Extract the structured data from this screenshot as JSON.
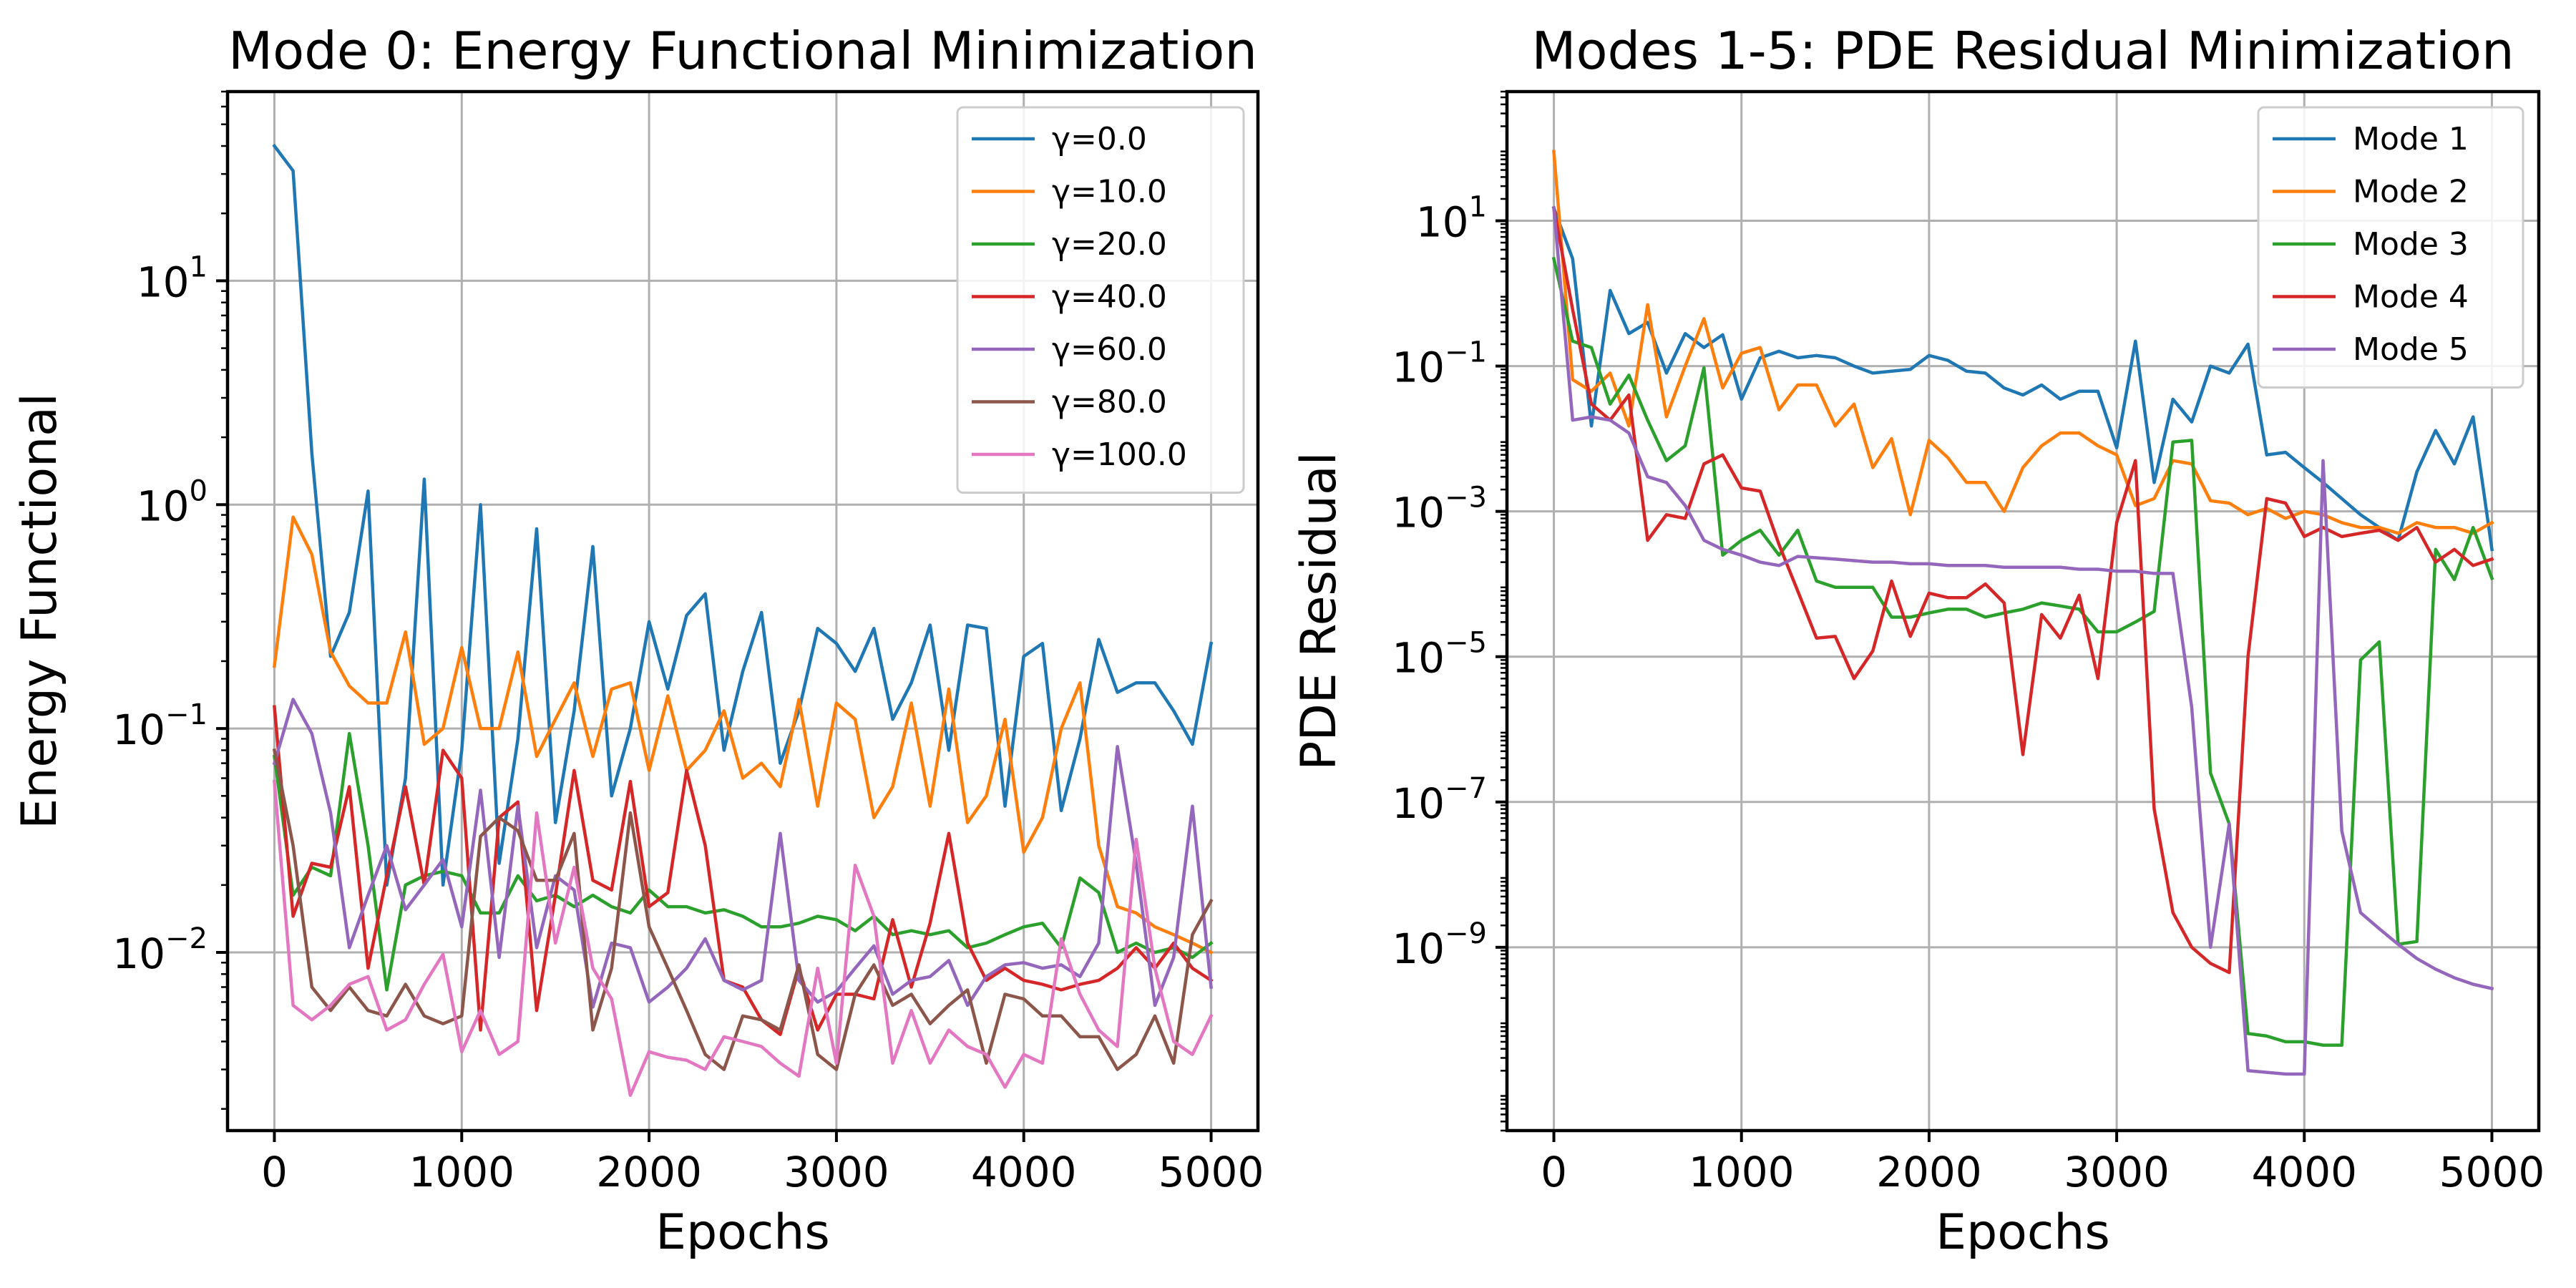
{
  "chart_data": [
    {
      "type": "line",
      "title": "Mode 0: Energy Functional Minimization",
      "xlabel": "Epochs",
      "ylabel": "Energy Functional",
      "yscale": "log",
      "xlim": [
        -250,
        5250
      ],
      "ylim": [
        0.0016,
        70
      ],
      "xticks": [
        0,
        1000,
        2000,
        3000,
        4000,
        5000
      ],
      "xtick_labels": [
        "0",
        "1000",
        "2000",
        "3000",
        "4000",
        "5000"
      ],
      "yticks": [
        {
          "base": "10",
          "exp": "−2",
          "value": 0.01
        },
        {
          "base": "10",
          "exp": "−1",
          "value": 0.1
        },
        {
          "base": "10",
          "exp": "0",
          "value": 1
        },
        {
          "base": "10",
          "exp": "1",
          "value": 10
        }
      ],
      "grid": true,
      "legend_position": "top-right",
      "x": [
        0,
        100,
        200,
        300,
        400,
        500,
        600,
        700,
        800,
        900,
        1000,
        1100,
        1200,
        1300,
        1400,
        1500,
        1600,
        1700,
        1800,
        1900,
        2000,
        2100,
        2200,
        2300,
        2400,
        2500,
        2600,
        2700,
        2800,
        2900,
        3000,
        3100,
        3200,
        3300,
        3400,
        3500,
        3600,
        3700,
        3800,
        3900,
        4000,
        4100,
        4200,
        4300,
        4400,
        4500,
        4600,
        4700,
        4800,
        4900,
        5000
      ],
      "series": [
        {
          "name": "γ=0.0",
          "color": "#1f77b4",
          "values": [
            40,
            31,
            1.7,
            0.21,
            0.33,
            1.15,
            0.02,
            0.06,
            1.3,
            0.02,
            0.08,
            1.0,
            0.025,
            0.09,
            0.78,
            0.038,
            0.12,
            0.65,
            0.05,
            0.1,
            0.3,
            0.15,
            0.32,
            0.4,
            0.08,
            0.18,
            0.33,
            0.07,
            0.12,
            0.28,
            0.24,
            0.18,
            0.28,
            0.11,
            0.16,
            0.29,
            0.08,
            0.29,
            0.28,
            0.045,
            0.21,
            0.24,
            0.043,
            0.09,
            0.25,
            0.145,
            0.16,
            0.16,
            0.12,
            0.085,
            0.24
          ]
        },
        {
          "name": "γ=10.0",
          "color": "#ff7f0e",
          "values": [
            0.19,
            0.88,
            0.6,
            0.22,
            0.155,
            0.13,
            0.13,
            0.27,
            0.085,
            0.1,
            0.23,
            0.1,
            0.1,
            0.22,
            0.075,
            0.11,
            0.16,
            0.075,
            0.15,
            0.16,
            0.065,
            0.14,
            0.065,
            0.08,
            0.12,
            0.06,
            0.07,
            0.055,
            0.135,
            0.045,
            0.13,
            0.11,
            0.04,
            0.055,
            0.13,
            0.045,
            0.15,
            0.038,
            0.05,
            0.11,
            0.028,
            0.04,
            0.1,
            0.16,
            0.03,
            0.016,
            0.015,
            0.013,
            0.012,
            0.011,
            0.01
          ]
        },
        {
          "name": "γ=20.0",
          "color": "#2ca02c",
          "values": [
            0.075,
            0.018,
            0.024,
            0.022,
            0.095,
            0.03,
            0.0068,
            0.02,
            0.022,
            0.023,
            0.022,
            0.015,
            0.015,
            0.022,
            0.017,
            0.018,
            0.016,
            0.018,
            0.016,
            0.015,
            0.019,
            0.016,
            0.016,
            0.015,
            0.0155,
            0.0145,
            0.013,
            0.013,
            0.0135,
            0.0145,
            0.014,
            0.0125,
            0.0145,
            0.012,
            0.0125,
            0.012,
            0.0125,
            0.0105,
            0.011,
            0.012,
            0.013,
            0.0135,
            0.0105,
            0.0215,
            0.0185,
            0.01,
            0.011,
            0.01,
            0.0105,
            0.0095,
            0.011
          ]
        },
        {
          "name": "γ=40.0",
          "color": "#d62728",
          "values": [
            0.125,
            0.0145,
            0.025,
            0.024,
            0.055,
            0.0085,
            0.022,
            0.055,
            0.02,
            0.08,
            0.06,
            0.0045,
            0.04,
            0.047,
            0.0055,
            0.018,
            0.065,
            0.021,
            0.019,
            0.058,
            0.016,
            0.0185,
            0.065,
            0.03,
            0.0075,
            0.007,
            0.005,
            0.0043,
            0.0085,
            0.0045,
            0.0065,
            0.0065,
            0.0062,
            0.014,
            0.007,
            0.0135,
            0.034,
            0.011,
            0.0075,
            0.0085,
            0.0075,
            0.0072,
            0.0068,
            0.0072,
            0.0075,
            0.0085,
            0.0105,
            0.0085,
            0.011,
            0.0085,
            0.0075
          ]
        },
        {
          "name": "γ=60.0",
          "color": "#9467bd",
          "values": [
            0.07,
            0.135,
            0.095,
            0.042,
            0.0105,
            0.018,
            0.03,
            0.0155,
            0.02,
            0.026,
            0.013,
            0.053,
            0.0095,
            0.045,
            0.0105,
            0.022,
            0.019,
            0.0057,
            0.011,
            0.0105,
            0.006,
            0.007,
            0.0085,
            0.0115,
            0.0075,
            0.0068,
            0.0075,
            0.034,
            0.0075,
            0.006,
            0.0067,
            0.0085,
            0.0107,
            0.0065,
            0.0075,
            0.0078,
            0.0092,
            0.0058,
            0.0078,
            0.0088,
            0.009,
            0.0085,
            0.0088,
            0.0078,
            0.011,
            0.083,
            0.025,
            0.0058,
            0.0095,
            0.045,
            0.007
          ]
        },
        {
          "name": "γ=80.0",
          "color": "#8c564b",
          "values": [
            0.08,
            0.03,
            0.007,
            0.0055,
            0.007,
            0.0055,
            0.0052,
            0.0072,
            0.0052,
            0.0048,
            0.0052,
            0.033,
            0.04,
            0.035,
            0.021,
            0.021,
            0.034,
            0.0045,
            0.0085,
            0.042,
            0.013,
            0.0085,
            0.0055,
            0.0035,
            0.003,
            0.0052,
            0.005,
            0.0045,
            0.0088,
            0.0035,
            0.003,
            0.0065,
            0.0088,
            0.0058,
            0.0065,
            0.0048,
            0.0058,
            0.0068,
            0.0032,
            0.0065,
            0.0062,
            0.0052,
            0.0052,
            0.0042,
            0.0042,
            0.003,
            0.0035,
            0.0052,
            0.0032,
            0.012,
            0.017
          ]
        },
        {
          "name": "γ=100.0",
          "color": "#e377c2",
          "values": [
            0.058,
            0.0058,
            0.005,
            0.0058,
            0.0072,
            0.0078,
            0.0045,
            0.005,
            0.0072,
            0.0098,
            0.0036,
            0.0055,
            0.0035,
            0.004,
            0.042,
            0.011,
            0.024,
            0.0085,
            0.0062,
            0.0023,
            0.0036,
            0.0034,
            0.0033,
            0.003,
            0.0042,
            0.004,
            0.0038,
            0.0032,
            0.0028,
            0.0085,
            0.0032,
            0.0245,
            0.0145,
            0.0032,
            0.0055,
            0.0032,
            0.0045,
            0.0038,
            0.0035,
            0.0025,
            0.0035,
            0.0032,
            0.0115,
            0.0065,
            0.0045,
            0.0038,
            0.032,
            0.0085,
            0.004,
            0.0035,
            0.0052
          ]
        }
      ]
    },
    {
      "type": "line",
      "title": "Modes 1-5: PDE Residual Minimization",
      "xlabel": "Epochs",
      "ylabel": "PDE Residual",
      "yscale": "log",
      "xlim": [
        -250,
        5250
      ],
      "ylim": [
        3e-12,
        600
      ],
      "xticks": [
        0,
        1000,
        2000,
        3000,
        4000,
        5000
      ],
      "xtick_labels": [
        "0",
        "1000",
        "2000",
        "3000",
        "4000",
        "5000"
      ],
      "yticks": [
        {
          "base": "10",
          "exp": "−9",
          "value": 1e-09
        },
        {
          "base": "10",
          "exp": "−7",
          "value": 1e-07
        },
        {
          "base": "10",
          "exp": "−5",
          "value": 1e-05
        },
        {
          "base": "10",
          "exp": "−3",
          "value": 0.001
        },
        {
          "base": "10",
          "exp": "−1",
          "value": 0.1
        },
        {
          "base": "10",
          "exp": "1",
          "value": 10
        }
      ],
      "grid": true,
      "legend_position": "top-right",
      "x": [
        0,
        100,
        200,
        300,
        400,
        500,
        600,
        700,
        800,
        900,
        1000,
        1100,
        1200,
        1300,
        1400,
        1500,
        1600,
        1700,
        1800,
        1900,
        2000,
        2100,
        2200,
        2300,
        2400,
        2500,
        2600,
        2700,
        2800,
        2900,
        3000,
        3100,
        3200,
        3300,
        3400,
        3500,
        3600,
        3700,
        3800,
        3900,
        4000,
        4100,
        4200,
        4300,
        4400,
        4500,
        4600,
        4700,
        4800,
        4900,
        5000
      ],
      "series": [
        {
          "name": "Mode 1",
          "color": "#1f77b4",
          "values": [
            15,
            3,
            0.015,
            1.1,
            0.28,
            0.4,
            0.08,
            0.28,
            0.18,
            0.27,
            0.035,
            0.13,
            0.16,
            0.13,
            0.14,
            0.13,
            0.1,
            0.08,
            0.085,
            0.09,
            0.14,
            0.12,
            0.085,
            0.08,
            0.05,
            0.04,
            0.055,
            0.035,
            0.045,
            0.045,
            0.0075,
            0.22,
            0.0025,
            0.035,
            0.017,
            0.1,
            0.08,
            0.2,
            0.006,
            0.0065,
            0.004,
            0.0025,
            0.0015,
            0.0009,
            0.0006,
            0.0004,
            0.0035,
            0.013,
            0.0045,
            0.02,
            0.0003
          ]
        },
        {
          "name": "Mode 2",
          "color": "#ff7f0e",
          "values": [
            90,
            0.065,
            0.045,
            0.08,
            0.015,
            0.7,
            0.02,
            0.1,
            0.45,
            0.05,
            0.15,
            0.18,
            0.025,
            0.055,
            0.055,
            0.015,
            0.03,
            0.004,
            0.01,
            0.0009,
            0.0095,
            0.0055,
            0.0025,
            0.0025,
            0.001,
            0.004,
            0.008,
            0.012,
            0.012,
            0.008,
            0.006,
            0.0012,
            0.0015,
            0.005,
            0.0045,
            0.0014,
            0.0013,
            0.0009,
            0.0011,
            0.0008,
            0.001,
            0.0009,
            0.0007,
            0.0006,
            0.0006,
            0.0005,
            0.0007,
            0.0006,
            0.0006,
            0.0005,
            0.0007
          ]
        },
        {
          "name": "Mode 3",
          "color": "#2ca02c",
          "values": [
            3,
            0.22,
            0.18,
            0.03,
            0.075,
            0.018,
            0.005,
            0.008,
            0.095,
            0.00025,
            0.0004,
            0.00055,
            0.00025,
            0.00055,
            0.00011,
            9e-05,
            9e-05,
            9e-05,
            3.5e-05,
            3.5e-05,
            4e-05,
            4.5e-05,
            4.5e-05,
            3.5e-05,
            4e-05,
            4.5e-05,
            5.5e-05,
            5e-05,
            4.5e-05,
            2.2e-05,
            2.2e-05,
            3e-05,
            4.2e-05,
            0.009,
            0.0095,
            2.5e-07,
            5e-08,
            6.5e-11,
            6e-11,
            5e-11,
            5e-11,
            4.5e-11,
            4.5e-11,
            9e-06,
            1.6e-05,
            1.1e-09,
            1.2e-09,
            0.0003,
            0.000115,
            0.0006,
            0.00012
          ]
        },
        {
          "name": "Mode 4",
          "color": "#d62728",
          "values": [
            15,
            0.6,
            0.03,
            0.018,
            0.04,
            0.0004,
            0.0009,
            0.0008,
            0.0045,
            0.006,
            0.0021,
            0.0019,
            0.00035,
            8e-05,
            1.8e-05,
            1.9e-05,
            5e-06,
            1.2e-05,
            0.00011,
            1.9e-05,
            7.5e-05,
            6.5e-05,
            6.5e-05,
            0.0001,
            5.5e-05,
            4.5e-07,
            3.8e-05,
            1.8e-05,
            7e-05,
            5e-06,
            0.0007,
            0.005,
            8e-08,
            3e-09,
            1e-09,
            6e-10,
            4.5e-10,
            1e-05,
            0.0015,
            0.0013,
            0.00045,
            0.0006,
            0.00045,
            0.0005,
            0.00055,
            0.0004,
            0.0006,
            0.0002,
            0.0003,
            0.00018,
            0.00022
          ]
        },
        {
          "name": "Mode 5",
          "color": "#9467bd",
          "values": [
            15,
            0.018,
            0.02,
            0.018,
            0.012,
            0.003,
            0.0025,
            0.0012,
            0.0004,
            0.0003,
            0.00025,
            0.0002,
            0.00018,
            0.00024,
            0.00023,
            0.00022,
            0.00021,
            0.0002,
            0.0002,
            0.00019,
            0.00019,
            0.00018,
            0.00018,
            0.00018,
            0.00017,
            0.00017,
            0.00017,
            0.00017,
            0.00016,
            0.00016,
            0.00015,
            0.00015,
            0.00014,
            0.00014,
            2e-06,
            1e-09,
            5e-08,
            2e-11,
            1.9e-11,
            1.8e-11,
            1.8e-11,
            0.005,
            4e-08,
            3e-09,
            1.8e-09,
            1.1e-09,
            7e-10,
            5e-10,
            3.8e-10,
            3.1e-10,
            2.7e-10
          ]
        }
      ]
    }
  ]
}
